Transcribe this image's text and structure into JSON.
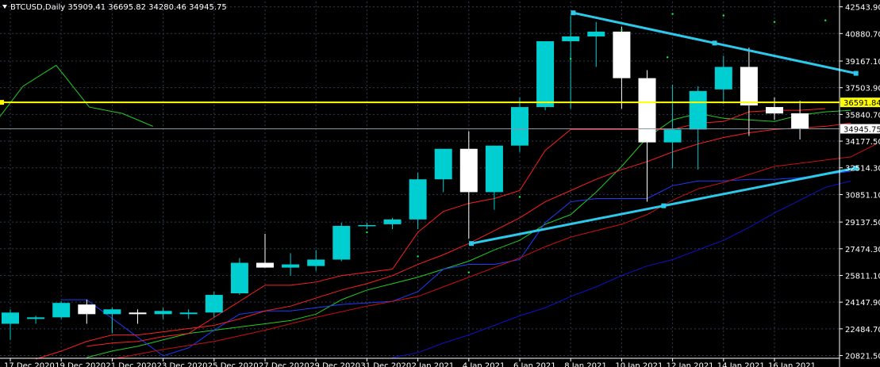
{
  "header": {
    "text": "BTCUSD,Daily  35909.41 36695.82 34280.46 34945.75",
    "arrow_icon": "triangle-down-icon"
  },
  "colors": {
    "background": "#000000",
    "bull": "#00ced1",
    "bear": "#ffffff",
    "grid": "#2f3a4f",
    "trendline": "#2ec8ea",
    "hline": "#ffff00",
    "ma_green": "#22cc22",
    "ma_red": "#ff1f1f",
    "ma_blue": "#1f3cff",
    "ma_darkblue": "#1010cc",
    "ma_darkred": "#cc1010",
    "dot_green": "#00ff44"
  },
  "chart_data": {
    "type": "candlestick",
    "symbol": "BTCUSD",
    "timeframe": "Daily",
    "ylim": [
      20651,
      42870
    ],
    "y_ticks": [
      "42543.90",
      "40880.70",
      "39167.10",
      "37503.90",
      "35840.70",
      "34177.50",
      "32514.30",
      "30851.10",
      "29137.50",
      "27474.30",
      "25811.10",
      "24147.90",
      "22484.70",
      "20821.50"
    ],
    "x_ticks": [
      "17 Dec 2020",
      "19 Dec 2020",
      "21 Dec 2020",
      "23 Dec 2020",
      "25 Dec 2020",
      "27 Dec 2020",
      "29 Dec 2020",
      "31 Dec 2020",
      "2 Jan 2021",
      "4 Jan 2021",
      "6 Jan 2021",
      "8 Jan 2021",
      "10 Jan 2021",
      "12 Jan 2021",
      "14 Jan 2021",
      "16 Jan 2021"
    ],
    "candles": [
      {
        "o": 22800,
        "h": 23700,
        "l": 21800,
        "c": 23500
      },
      {
        "o": 23100,
        "h": 23300,
        "l": 22800,
        "c": 23200
      },
      {
        "o": 23200,
        "h": 24200,
        "l": 23100,
        "c": 24100
      },
      {
        "o": 24000,
        "h": 24300,
        "l": 22800,
        "c": 23400
      },
      {
        "o": 23400,
        "h": 23800,
        "l": 22200,
        "c": 23700
      },
      {
        "o": 23500,
        "h": 23700,
        "l": 22800,
        "c": 23400
      },
      {
        "o": 23400,
        "h": 23800,
        "l": 23100,
        "c": 23600
      },
      {
        "o": 23400,
        "h": 23700,
        "l": 23100,
        "c": 23500
      },
      {
        "o": 23500,
        "h": 24800,
        "l": 23200,
        "c": 24600
      },
      {
        "o": 24700,
        "h": 26900,
        "l": 24600,
        "c": 26600
      },
      {
        "o": 26600,
        "h": 28400,
        "l": 26300,
        "c": 26300
      },
      {
        "o": 26300,
        "h": 27200,
        "l": 25800,
        "c": 26500
      },
      {
        "o": 26400,
        "h": 27400,
        "l": 26100,
        "c": 26800
      },
      {
        "o": 26800,
        "h": 29100,
        "l": 26700,
        "c": 28900
      },
      {
        "o": 28900,
        "h": 29100,
        "l": 28700,
        "c": 28950
      },
      {
        "o": 29000,
        "h": 29400,
        "l": 28700,
        "c": 29300
      },
      {
        "o": 29300,
        "h": 32200,
        "l": 28700,
        "c": 31800
      },
      {
        "o": 31800,
        "h": 33600,
        "l": 31000,
        "c": 33700
      },
      {
        "o": 33700,
        "h": 34800,
        "l": 28100,
        "c": 31000
      },
      {
        "o": 31000,
        "h": 33900,
        "l": 29900,
        "c": 33900
      },
      {
        "o": 33900,
        "h": 36900,
        "l": 33500,
        "c": 36300
      },
      {
        "o": 36300,
        "h": 40400,
        "l": 36100,
        "c": 40400
      },
      {
        "o": 40400,
        "h": 42000,
        "l": 36200,
        "c": 40700
      },
      {
        "o": 40700,
        "h": 41600,
        "l": 38800,
        "c": 41000
      },
      {
        "o": 41000,
        "h": 41300,
        "l": 36200,
        "c": 38100
      },
      {
        "o": 38100,
        "h": 38600,
        "l": 30400,
        "c": 34100
      },
      {
        "o": 34100,
        "h": 37700,
        "l": 32500,
        "c": 34900
      },
      {
        "o": 34900,
        "h": 37600,
        "l": 32400,
        "c": 37300
      },
      {
        "o": 37400,
        "h": 39500,
        "l": 36500,
        "c": 38800
      },
      {
        "o": 38800,
        "h": 40000,
        "l": 34500,
        "c": 36400
      },
      {
        "o": 36300,
        "h": 36900,
        "l": 35500,
        "c": 35900
      },
      {
        "o": 35909.41,
        "h": 36695.82,
        "l": 34280.46,
        "c": 34945.75
      }
    ],
    "hline": {
      "value": 36591.84,
      "label": "36591.84"
    },
    "current_price": {
      "value": 34945.75,
      "label": "34945.75"
    },
    "trendlines": [
      {
        "x1": 22.1,
        "y1": 42170,
        "x2": 33.2,
        "y2": 38400
      },
      {
        "x1": 18.1,
        "y1": 27800,
        "x2": 33.2,
        "y2": 32500
      }
    ],
    "lines": [
      {
        "name": "green",
        "color": "#22cc22",
        "points": [
          [
            -0.8,
            34900
          ],
          [
            0.5,
            37600
          ],
          [
            1.8,
            38900
          ],
          [
            3.1,
            36300
          ],
          [
            4.4,
            35900
          ],
          [
            5.6,
            35100
          ]
        ]
      },
      {
        "name": "green_ma",
        "color": "#22cc22",
        "points": [
          [
            3,
            20700
          ],
          [
            4,
            21100
          ],
          [
            5,
            21400
          ],
          [
            6,
            21800
          ],
          [
            7,
            22200
          ],
          [
            8,
            22400
          ],
          [
            9,
            22600
          ],
          [
            10,
            22800
          ],
          [
            11,
            23000
          ],
          [
            12,
            23400
          ],
          [
            13,
            24300
          ],
          [
            14,
            24900
          ],
          [
            15,
            25300
          ],
          [
            16,
            25700
          ],
          [
            17,
            26200
          ],
          [
            18,
            26700
          ],
          [
            19,
            27400
          ],
          [
            20,
            28000
          ],
          [
            21,
            29000
          ],
          [
            22,
            29600
          ],
          [
            23,
            31000
          ],
          [
            24,
            32600
          ],
          [
            25,
            34400
          ],
          [
            26,
            35500
          ],
          [
            27,
            35900
          ],
          [
            28,
            35600
          ],
          [
            29,
            35500
          ],
          [
            30,
            35400
          ],
          [
            31,
            35800
          ],
          [
            32,
            36000
          ],
          [
            33,
            36100
          ]
        ]
      },
      {
        "name": "red_step",
        "color": "#ff1f1f",
        "points": [
          [
            3,
            21400
          ],
          [
            4,
            21600
          ],
          [
            5,
            21700
          ],
          [
            6,
            22000
          ],
          [
            7,
            22200
          ],
          [
            8,
            23200
          ],
          [
            9,
            24200
          ],
          [
            10,
            25200
          ],
          [
            11,
            25200
          ],
          [
            12,
            25400
          ],
          [
            13,
            25800
          ],
          [
            14,
            26000
          ],
          [
            15,
            26200
          ],
          [
            16,
            28500
          ],
          [
            17,
            29800
          ],
          [
            18,
            30300
          ],
          [
            19,
            30600
          ],
          [
            20,
            31100
          ],
          [
            21,
            33600
          ],
          [
            22,
            34900
          ],
          [
            23,
            34900
          ],
          [
            24,
            34900
          ],
          [
            25,
            34900
          ],
          [
            26,
            34900
          ],
          [
            27,
            35300
          ],
          [
            28,
            35400
          ],
          [
            29,
            36000
          ],
          [
            30,
            36100
          ],
          [
            31,
            36100
          ],
          [
            32,
            36200
          ]
        ]
      },
      {
        "name": "blue_step",
        "color": "#1f3cff",
        "points": [
          [
            2,
            24300
          ],
          [
            3,
            24300
          ],
          [
            6,
            20800
          ],
          [
            7,
            21300
          ],
          [
            8,
            22400
          ],
          [
            9,
            23400
          ],
          [
            10,
            23600
          ],
          [
            11,
            23600
          ],
          [
            12,
            23800
          ],
          [
            13,
            24000
          ],
          [
            14,
            24100
          ],
          [
            15,
            24200
          ],
          [
            16,
            24800
          ],
          [
            17,
            26200
          ],
          [
            18,
            26500
          ],
          [
            19,
            26500
          ],
          [
            20,
            26800
          ],
          [
            21,
            29100
          ],
          [
            22,
            30400
          ],
          [
            23,
            30600
          ],
          [
            24,
            30600
          ],
          [
            25,
            30600
          ],
          [
            26,
            31400
          ],
          [
            27,
            31700
          ],
          [
            28,
            31700
          ],
          [
            29,
            31800
          ],
          [
            30,
            31800
          ],
          [
            31,
            31900
          ],
          [
            32,
            32100
          ],
          [
            33,
            32300
          ]
        ]
      },
      {
        "name": "red_ma",
        "color": "#ff1f1f",
        "points": [
          [
            1,
            20600
          ],
          [
            2,
            21100
          ],
          [
            3,
            21700
          ],
          [
            4,
            22100
          ],
          [
            5,
            22100
          ],
          [
            6,
            22300
          ],
          [
            7,
            22500
          ],
          [
            8,
            22700
          ],
          [
            9,
            23100
          ],
          [
            10,
            23600
          ],
          [
            11,
            23900
          ],
          [
            12,
            24400
          ],
          [
            13,
            24900
          ],
          [
            14,
            25300
          ],
          [
            15,
            25800
          ],
          [
            16,
            26500
          ],
          [
            17,
            27100
          ],
          [
            18,
            27800
          ],
          [
            19,
            28600
          ],
          [
            20,
            29400
          ],
          [
            21,
            30400
          ],
          [
            22,
            31100
          ],
          [
            23,
            31800
          ],
          [
            24,
            32400
          ],
          [
            25,
            32900
          ],
          [
            26,
            33500
          ],
          [
            27,
            34000
          ],
          [
            28,
            34400
          ],
          [
            29,
            34700
          ],
          [
            30,
            34900
          ],
          [
            31,
            35000
          ],
          [
            32,
            35100
          ],
          [
            33,
            35300
          ]
        ]
      },
      {
        "name": "darkred_ma",
        "color": "#cc1010",
        "points": [
          [
            4,
            20600
          ],
          [
            6,
            21200
          ],
          [
            8,
            21700
          ],
          [
            10,
            22400
          ],
          [
            12,
            23200
          ],
          [
            14,
            23900
          ],
          [
            16,
            24500
          ],
          [
            17,
            25100
          ],
          [
            18,
            25700
          ],
          [
            19,
            26300
          ],
          [
            20,
            26900
          ],
          [
            21,
            27600
          ],
          [
            22,
            28200
          ],
          [
            23,
            28600
          ],
          [
            24,
            29000
          ],
          [
            25,
            29600
          ],
          [
            26,
            30500
          ],
          [
            27,
            31200
          ],
          [
            28,
            31600
          ],
          [
            29,
            32100
          ],
          [
            30,
            32600
          ],
          [
            31,
            32800
          ],
          [
            32,
            33000
          ],
          [
            33,
            33200
          ],
          [
            34,
            34000
          ]
        ]
      },
      {
        "name": "darkblue_ma",
        "color": "#1010cc",
        "points": [
          [
            15,
            20700
          ],
          [
            16,
            21000
          ],
          [
            17,
            21600
          ],
          [
            18,
            22100
          ],
          [
            19,
            22700
          ],
          [
            20,
            23300
          ],
          [
            21,
            23800
          ],
          [
            22,
            24500
          ],
          [
            23,
            25100
          ],
          [
            24,
            25800
          ],
          [
            25,
            26400
          ],
          [
            26,
            26800
          ],
          [
            27,
            27400
          ],
          [
            28,
            28000
          ],
          [
            29,
            28800
          ],
          [
            30,
            29700
          ],
          [
            31,
            30500
          ],
          [
            32,
            31300
          ],
          [
            33,
            31700
          ]
        ]
      }
    ],
    "dots": [
      {
        "x": 14,
        "y": 28500
      },
      {
        "x": 16,
        "y": 27000
      },
      {
        "x": 18,
        "y": 26000
      },
      {
        "x": 20,
        "y": 30700
      },
      {
        "x": 22,
        "y": 39300
      },
      {
        "x": 24,
        "y": 41100
      },
      {
        "x": 26,
        "y": 42100
      },
      {
        "x": 28,
        "y": 42000
      },
      {
        "x": 30,
        "y": 41600
      },
      {
        "x": 32,
        "y": 41700
      },
      {
        "x": 25.8,
        "y": 39400
      }
    ]
  }
}
